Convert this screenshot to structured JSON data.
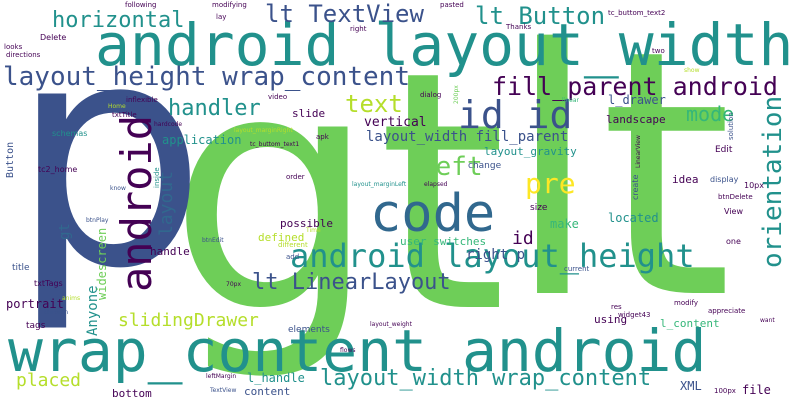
{
  "palette": {
    "dark_purple": "#440154",
    "indigo": "#3b528b",
    "blue": "#31688e",
    "teal": "#21918c",
    "green": "#35b779",
    "lime": "#6ece58",
    "yellow": "#fde725",
    "yellow_green": "#b5de2b"
  },
  "words": [
    {
      "text": "gt"
    },
    {
      "text": "lt"
    },
    {
      "text": "p"
    },
    {
      "text": "android layout_width"
    },
    {
      "text": "wrap_content android"
    },
    {
      "text": "code"
    },
    {
      "text": "android layout_height"
    },
    {
      "text": "layout_height wrap_content"
    },
    {
      "text": "fill_parent android"
    },
    {
      "text": "android"
    },
    {
      "text": "id id"
    },
    {
      "text": "orientation"
    },
    {
      "text": "lt TextView"
    },
    {
      "text": "lt Button"
    },
    {
      "text": "horizontal"
    },
    {
      "text": "handler"
    },
    {
      "text": "text"
    },
    {
      "text": "pre"
    },
    {
      "text": "left"
    },
    {
      "text": "lt LinearLayout"
    },
    {
      "text": "layout_width wrap_content"
    },
    {
      "text": "slidingDrawer"
    },
    {
      "text": "placed"
    },
    {
      "text": "layout"
    },
    {
      "text": "mode"
    },
    {
      "text": "layout_width fill_parent"
    },
    {
      "text": "id"
    },
    {
      "text": "right p"
    },
    {
      "text": "vertical"
    },
    {
      "text": "application"
    },
    {
      "text": "Anyone"
    },
    {
      "text": "gt"
    },
    {
      "text": "portrait"
    },
    {
      "text": "widescreen"
    },
    {
      "text": "landscape"
    },
    {
      "text": "l_drawer"
    },
    {
      "text": "layout_gravity"
    },
    {
      "text": "user switches"
    },
    {
      "text": "make"
    },
    {
      "text": "located"
    },
    {
      "text": "idea"
    },
    {
      "text": "handle"
    },
    {
      "text": "defined"
    },
    {
      "text": "possible"
    },
    {
      "text": "Button"
    },
    {
      "text": "slide"
    },
    {
      "text": "l_content"
    },
    {
      "text": "l_handle"
    },
    {
      "text": "bottom"
    },
    {
      "text": "content"
    },
    {
      "text": "XML"
    },
    {
      "text": "file"
    },
    {
      "text": "using"
    },
    {
      "text": "size"
    },
    {
      "text": "change"
    },
    {
      "text": "elements"
    },
    {
      "text": "tags"
    },
    {
      "text": "title"
    },
    {
      "text": "txtTags"
    },
    {
      "text": "tc2_home"
    },
    {
      "text": "schemas"
    },
    {
      "text": "Edit"
    },
    {
      "text": "View"
    },
    {
      "text": "one"
    },
    {
      "text": "display"
    },
    {
      "text": "10px"
    },
    {
      "text": "btnDelete"
    },
    {
      "text": "create"
    },
    {
      "text": "LinearView"
    },
    {
      "text": "solution"
    },
    {
      "text": "widget43"
    },
    {
      "text": "current"
    },
    {
      "text": "res"
    },
    {
      "text": "modify"
    },
    {
      "text": "appreciate"
    },
    {
      "text": "want"
    },
    {
      "text": "100px"
    },
    {
      "text": "following"
    },
    {
      "text": "modifying"
    },
    {
      "text": "lay"
    },
    {
      "text": "tc_buttom_text2"
    },
    {
      "text": "right"
    },
    {
      "text": "pasted"
    },
    {
      "text": "Thanks"
    },
    {
      "text": "two"
    },
    {
      "text": "looks"
    },
    {
      "text": "Delete"
    },
    {
      "text": "directions"
    },
    {
      "text": "inflexible"
    },
    {
      "text": "Home"
    },
    {
      "text": "txtTitle"
    },
    {
      "text": "hardcode"
    },
    {
      "text": "layout_marginRight"
    },
    {
      "text": "tc_buttom_text1"
    },
    {
      "text": "apk"
    },
    {
      "text": "video"
    },
    {
      "text": "dialog"
    },
    {
      "text": "200px"
    },
    {
      "text": "linear"
    },
    {
      "text": "show"
    },
    {
      "text": "know"
    },
    {
      "text": "inside"
    },
    {
      "text": "order"
    },
    {
      "text": "layout_marginLeft"
    },
    {
      "text": "elapsed"
    },
    {
      "text": "btnPlay"
    },
    {
      "text": "Time"
    },
    {
      "text": "different"
    },
    {
      "text": "add"
    },
    {
      "text": "btnEdit"
    },
    {
      "text": "70px"
    },
    {
      "text": "anims"
    },
    {
      "text": "children"
    },
    {
      "text": "layout_weight"
    },
    {
      "text": "flows"
    },
    {
      "text": "leftMargin"
    },
    {
      "text": "TextView"
    }
  ]
}
